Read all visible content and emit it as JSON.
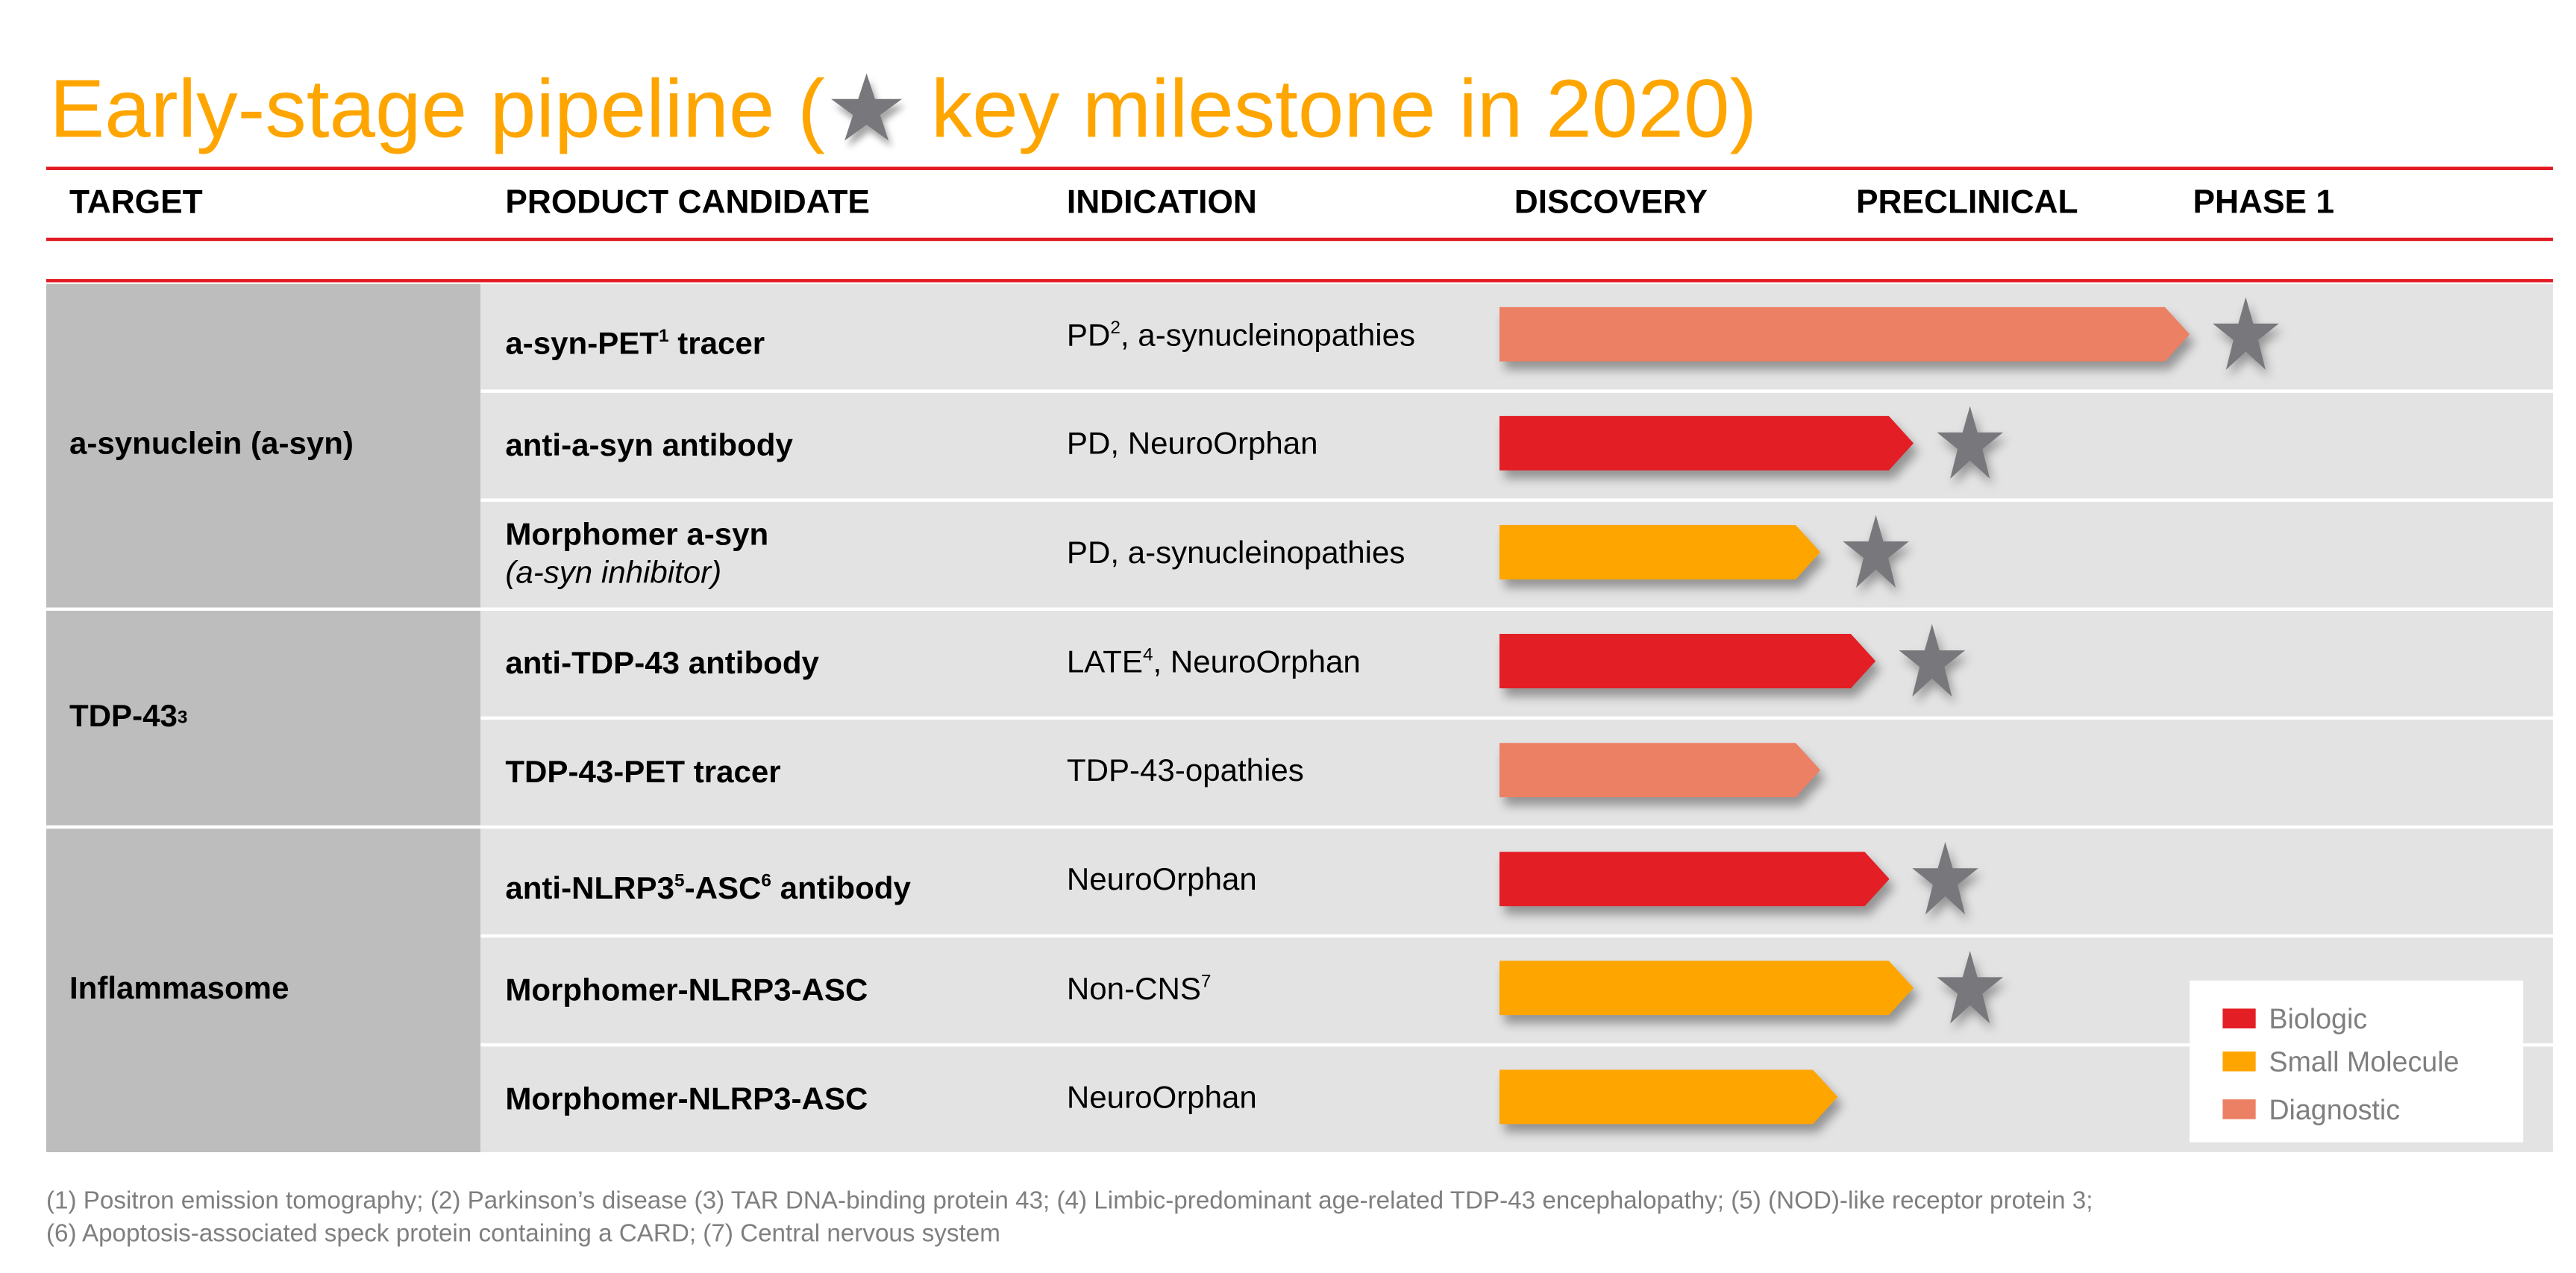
{
  "title": {
    "before": "Early-stage pipeline (",
    "after": " key milestone in 2020)",
    "star_icon": "star-icon"
  },
  "columns": [
    "TARGET",
    "PRODUCT CANDIDATE",
    "INDICATION",
    "DISCOVERY",
    "PRECLINICAL",
    "PHASE 1"
  ],
  "colors": {
    "Biologic": "#E31E24",
    "Small Molecule": "#FFA500",
    "Diagnostic": "#EC8064",
    "star": "#78787C",
    "title": "#FFA500",
    "rule": "#E31B23"
  },
  "targets": [
    {
      "name": "a-synuclein (a-syn)",
      "sup": ""
    },
    {
      "name": "TDP-43",
      "sup": "3"
    },
    {
      "name": "Inflammasome",
      "sup": ""
    }
  ],
  "chart_data": {
    "type": "bar",
    "phases": [
      "DISCOVERY",
      "PRECLINICAL",
      "PHASE 1"
    ],
    "progress_unit": "phases completed",
    "rows": [
      {
        "target": 0,
        "product": "a-syn-PET",
        "product_sup": "1",
        "product_suffix": " tracer",
        "product_sub": "",
        "indication": "PD",
        "ind_sup": "2",
        "ind_suffix": ", a-synucleinopathies",
        "type": "Diagnostic",
        "progress": 2.0,
        "milestone_2020": true
      },
      {
        "target": 0,
        "product": "anti-a-syn antibody",
        "product_sup": "",
        "product_suffix": "",
        "product_sub": "",
        "indication": "PD, NeuroOrphan",
        "ind_sup": "",
        "ind_suffix": "",
        "type": "Biologic",
        "progress": 1.2,
        "milestone_2020": true
      },
      {
        "target": 0,
        "product": "Morphomer a-syn",
        "product_sup": "",
        "product_suffix": "",
        "product_sub": "(a-syn inhibitor)",
        "indication": "PD, a-synucleinopathies",
        "ind_sup": "",
        "ind_suffix": "",
        "type": "Small Molecule",
        "progress": 0.93,
        "milestone_2020": true
      },
      {
        "target": 1,
        "product": "anti-TDP-43 antibody",
        "product_sup": "",
        "product_suffix": "",
        "product_sub": "",
        "indication": "LATE",
        "ind_sup": "4",
        "ind_suffix": ", NeuroOrphan",
        "type": "Biologic",
        "progress": 1.09,
        "milestone_2020": true
      },
      {
        "target": 1,
        "product": "TDP-43-PET tracer",
        "product_sup": "",
        "product_suffix": "",
        "product_sub": "",
        "indication": "TDP-43-opathies",
        "ind_sup": "",
        "ind_suffix": "",
        "type": "Diagnostic",
        "progress": 0.93,
        "milestone_2020": false
      },
      {
        "target": 2,
        "product": "anti-NLRP3",
        "product_sup": "5",
        "product_suffix": "-ASC",
        "product_sup2": "6",
        "product_suffix2": " antibody",
        "product_sub": "",
        "indication": "NeuroOrphan",
        "ind_sup": "",
        "ind_suffix": "",
        "type": "Biologic",
        "progress": 1.13,
        "milestone_2020": true
      },
      {
        "target": 2,
        "product": "Morphomer-NLRP3-ASC",
        "product_sup": "",
        "product_suffix": "",
        "product_sub": "",
        "indication": "Non-CNS",
        "ind_sup": "7",
        "ind_suffix": "",
        "type": "Small Molecule",
        "progress": 1.2,
        "milestone_2020": true
      },
      {
        "target": 2,
        "product": "Morphomer-NLRP3-ASC",
        "product_sup": "",
        "product_suffix": "",
        "product_sub": "",
        "indication": "NeuroOrphan",
        "ind_sup": "",
        "ind_suffix": "",
        "type": "Small Molecule",
        "progress": 0.98,
        "milestone_2020": false
      }
    ],
    "legend": [
      "Biologic",
      "Small Molecule",
      "Diagnostic"
    ],
    "legend_position": "bottom-right"
  },
  "footnotes": [
    "(1) Positron emission tomography; (2) Parkinson’s disease (3) TAR DNA-binding protein 43; (4) Limbic-predominant age-related TDP-43 encephalopathy; (5) (NOD)-like receptor protein 3;",
    "(6) Apoptosis-associated speck protein containing a CARD; (7) Central nervous system"
  ]
}
